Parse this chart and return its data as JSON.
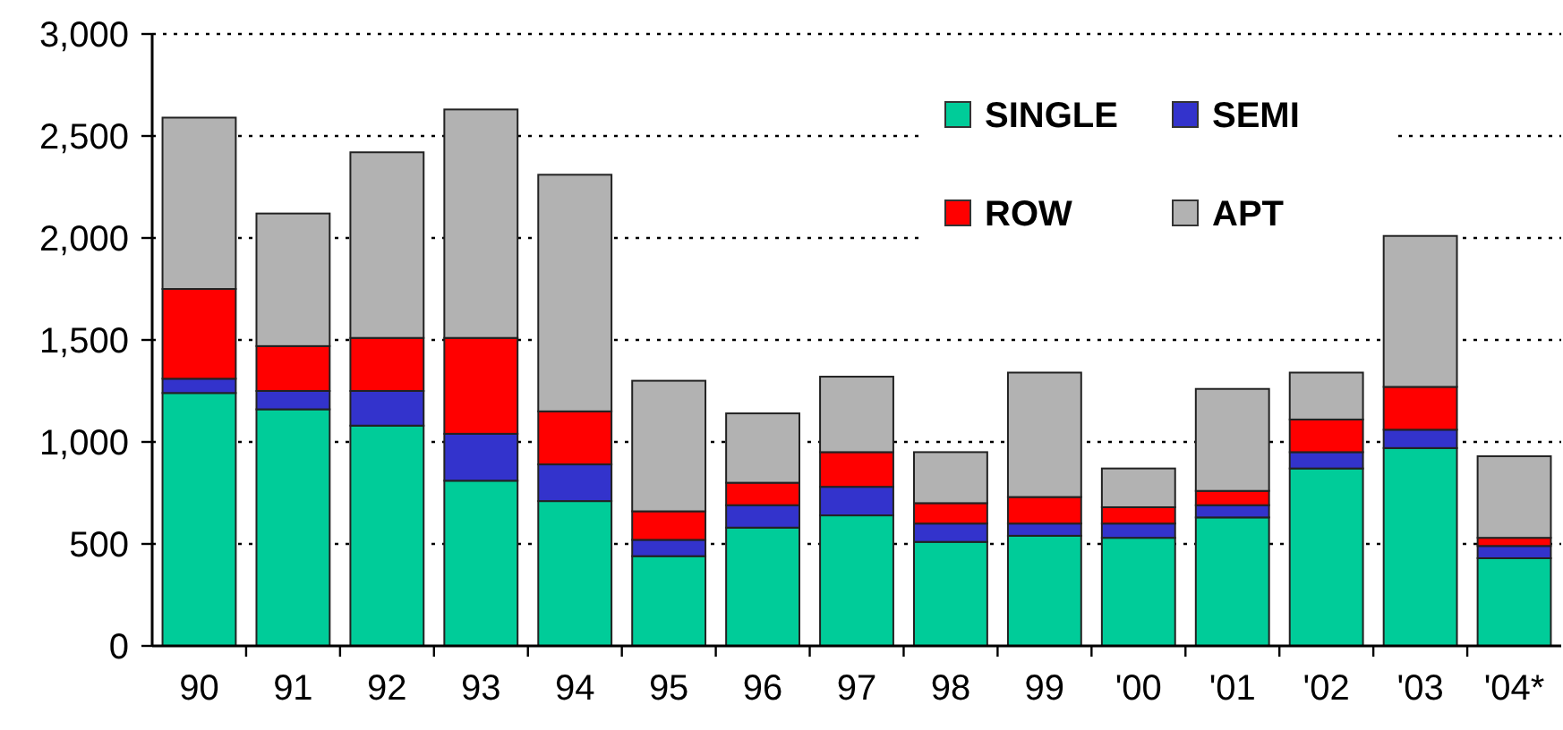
{
  "chart_data": {
    "type": "bar",
    "stacked": true,
    "categories": [
      "90",
      "91",
      "92",
      "93",
      "94",
      "95",
      "96",
      "97",
      "98",
      "99",
      "'00",
      "'01",
      "'02",
      "'03",
      "'04*"
    ],
    "series": [
      {
        "name": "SINGLE",
        "color": "#00cc99",
        "values": [
          1240,
          1160,
          1080,
          810,
          710,
          440,
          580,
          640,
          510,
          540,
          530,
          630,
          870,
          970,
          430
        ]
      },
      {
        "name": "SEMI",
        "color": "#3333cc",
        "values": [
          70,
          90,
          170,
          230,
          180,
          80,
          110,
          140,
          90,
          60,
          70,
          60,
          80,
          90,
          60
        ]
      },
      {
        "name": "ROW",
        "color": "#ff0000",
        "values": [
          440,
          220,
          260,
          470,
          260,
          140,
          110,
          170,
          100,
          130,
          80,
          70,
          160,
          210,
          40
        ]
      },
      {
        "name": "APT",
        "color": "#b2b2b2",
        "values": [
          840,
          650,
          910,
          1120,
          1160,
          640,
          340,
          370,
          250,
          610,
          190,
          500,
          230,
          740,
          400
        ]
      }
    ],
    "ylim": [
      0,
      3000
    ],
    "yticks": [
      0,
      500,
      {
        "value": 1000,
        "label": "1,000"
      },
      {
        "value": 1500,
        "label": "1,500"
      },
      {
        "value": 2000,
        "label": "2,000"
      },
      {
        "value": 2500,
        "label": "2,500"
      },
      {
        "value": 3000,
        "label": "3,000"
      }
    ],
    "grid": "y",
    "legend": "top right"
  }
}
